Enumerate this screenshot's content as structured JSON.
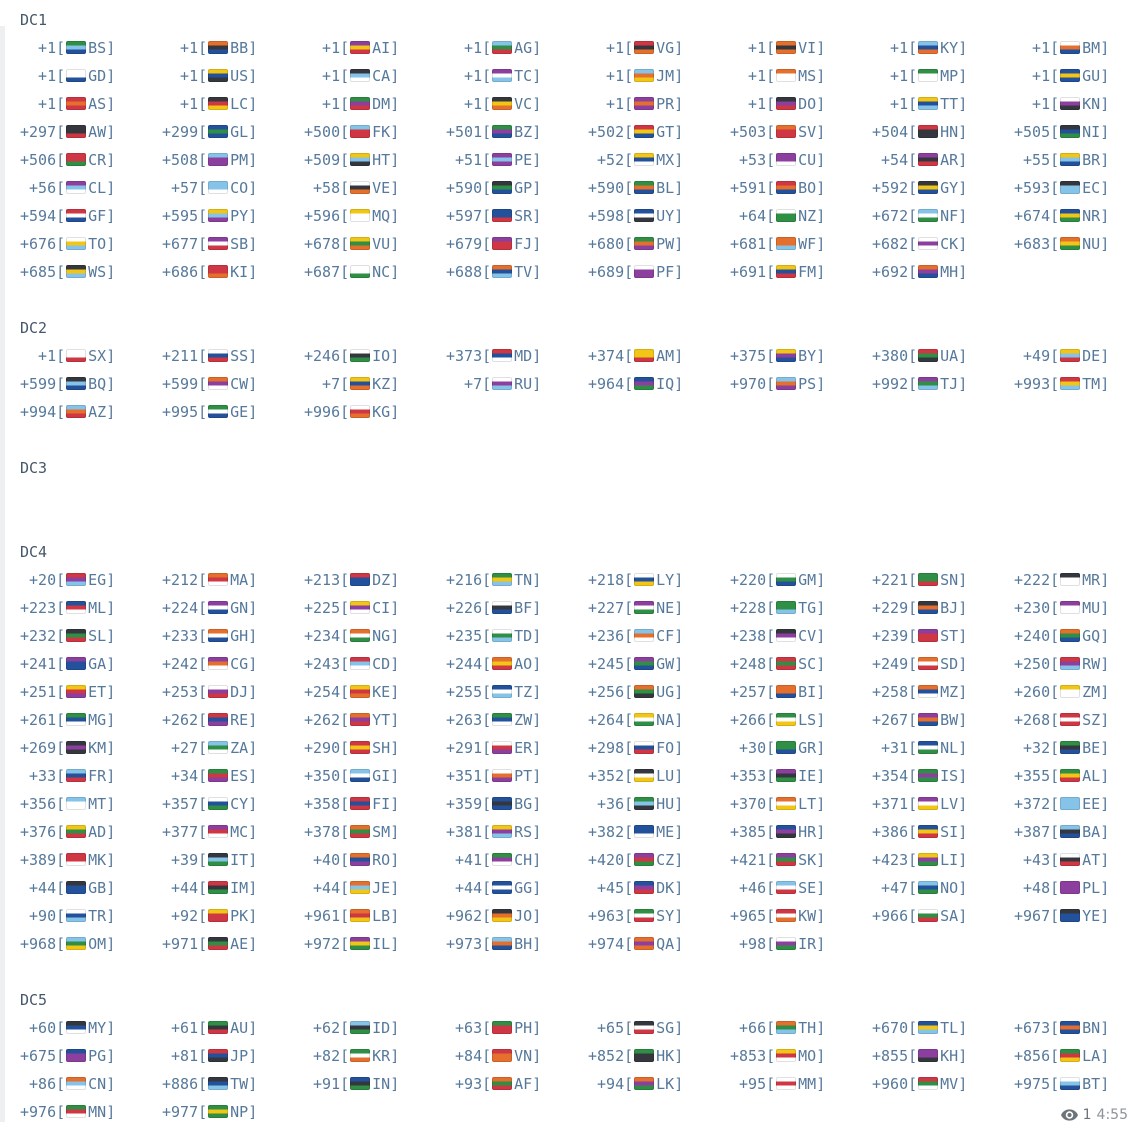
{
  "colors": {
    "entry_text": "#56799b",
    "section_label": "#45586a",
    "meta_text": "#6d747a",
    "time_text": "#8d9398",
    "background": "#ffffff"
  },
  "message": {
    "entry_format": {
      "open": "[",
      "close": "]"
    },
    "sections": [
      {
        "label": "DC1",
        "entries": [
          {
            "code": "+1",
            "cc": "BS"
          },
          {
            "code": "+1",
            "cc": "BB"
          },
          {
            "code": "+1",
            "cc": "AI"
          },
          {
            "code": "+1",
            "cc": "AG"
          },
          {
            "code": "+1",
            "cc": "VG"
          },
          {
            "code": "+1",
            "cc": "VI"
          },
          {
            "code": "+1",
            "cc": "KY"
          },
          {
            "code": "+1",
            "cc": "BM"
          },
          {
            "code": "+1",
            "cc": "GD"
          },
          {
            "code": "+1",
            "cc": "US"
          },
          {
            "code": "+1",
            "cc": "CA"
          },
          {
            "code": "+1",
            "cc": "TC"
          },
          {
            "code": "+1",
            "cc": "JM"
          },
          {
            "code": "+1",
            "cc": "MS"
          },
          {
            "code": "+1",
            "cc": "MP"
          },
          {
            "code": "+1",
            "cc": "GU"
          },
          {
            "code": "+1",
            "cc": "AS"
          },
          {
            "code": "+1",
            "cc": "LC"
          },
          {
            "code": "+1",
            "cc": "DM"
          },
          {
            "code": "+1",
            "cc": "VC"
          },
          {
            "code": "+1",
            "cc": "PR"
          },
          {
            "code": "+1",
            "cc": "DO"
          },
          {
            "code": "+1",
            "cc": "TT"
          },
          {
            "code": "+1",
            "cc": "KN"
          },
          {
            "code": "+297",
            "cc": "AW"
          },
          {
            "code": "+299",
            "cc": "GL"
          },
          {
            "code": "+500",
            "cc": "FK"
          },
          {
            "code": "+501",
            "cc": "BZ"
          },
          {
            "code": "+502",
            "cc": "GT"
          },
          {
            "code": "+503",
            "cc": "SV"
          },
          {
            "code": "+504",
            "cc": "HN"
          },
          {
            "code": "+505",
            "cc": "NI"
          },
          {
            "code": "+506",
            "cc": "CR"
          },
          {
            "code": "+508",
            "cc": "PM"
          },
          {
            "code": "+509",
            "cc": "HT"
          },
          {
            "code": "+51",
            "cc": "PE"
          },
          {
            "code": "+52",
            "cc": "MX"
          },
          {
            "code": "+53",
            "cc": "CU"
          },
          {
            "code": "+54",
            "cc": "AR"
          },
          {
            "code": "+55",
            "cc": "BR"
          },
          {
            "code": "+56",
            "cc": "CL"
          },
          {
            "code": "+57",
            "cc": "CO"
          },
          {
            "code": "+58",
            "cc": "VE"
          },
          {
            "code": "+590",
            "cc": "GP"
          },
          {
            "code": "+590",
            "cc": "BL"
          },
          {
            "code": "+591",
            "cc": "BO"
          },
          {
            "code": "+592",
            "cc": "GY"
          },
          {
            "code": "+593",
            "cc": "EC"
          },
          {
            "code": "+594",
            "cc": "GF"
          },
          {
            "code": "+595",
            "cc": "PY"
          },
          {
            "code": "+596",
            "cc": "MQ"
          },
          {
            "code": "+597",
            "cc": "SR"
          },
          {
            "code": "+598",
            "cc": "UY"
          },
          {
            "code": "+64",
            "cc": "NZ"
          },
          {
            "code": "+672",
            "cc": "NF"
          },
          {
            "code": "+674",
            "cc": "NR"
          },
          {
            "code": "+676",
            "cc": "TO"
          },
          {
            "code": "+677",
            "cc": "SB"
          },
          {
            "code": "+678",
            "cc": "VU"
          },
          {
            "code": "+679",
            "cc": "FJ"
          },
          {
            "code": "+680",
            "cc": "PW"
          },
          {
            "code": "+681",
            "cc": "WF"
          },
          {
            "code": "+682",
            "cc": "CK"
          },
          {
            "code": "+683",
            "cc": "NU"
          },
          {
            "code": "+685",
            "cc": "WS"
          },
          {
            "code": "+686",
            "cc": "KI"
          },
          {
            "code": "+687",
            "cc": "NC"
          },
          {
            "code": "+688",
            "cc": "TV"
          },
          {
            "code": "+689",
            "cc": "PF"
          },
          {
            "code": "+691",
            "cc": "FM"
          },
          {
            "code": "+692",
            "cc": "MH"
          }
        ]
      },
      {
        "label": "DC2",
        "entries": [
          {
            "code": "+1",
            "cc": "SX"
          },
          {
            "code": "+211",
            "cc": "SS"
          },
          {
            "code": "+246",
            "cc": "IO"
          },
          {
            "code": "+373",
            "cc": "MD"
          },
          {
            "code": "+374",
            "cc": "AM"
          },
          {
            "code": "+375",
            "cc": "BY"
          },
          {
            "code": "+380",
            "cc": "UA"
          },
          {
            "code": "+49",
            "cc": "DE"
          },
          {
            "code": "+599",
            "cc": "BQ"
          },
          {
            "code": "+599",
            "cc": "CW"
          },
          {
            "code": "+7",
            "cc": "KZ"
          },
          {
            "code": "+7",
            "cc": "RU"
          },
          {
            "code": "+964",
            "cc": "IQ"
          },
          {
            "code": "+970",
            "cc": "PS"
          },
          {
            "code": "+992",
            "cc": "TJ"
          },
          {
            "code": "+993",
            "cc": "TM"
          },
          {
            "code": "+994",
            "cc": "AZ"
          },
          {
            "code": "+995",
            "cc": "GE"
          },
          {
            "code": "+996",
            "cc": "KG"
          }
        ]
      },
      {
        "label": "DC3",
        "entries": []
      },
      {
        "label": "DC4",
        "entries": [
          {
            "code": "+20",
            "cc": "EG"
          },
          {
            "code": "+212",
            "cc": "MA"
          },
          {
            "code": "+213",
            "cc": "DZ"
          },
          {
            "code": "+216",
            "cc": "TN"
          },
          {
            "code": "+218",
            "cc": "LY"
          },
          {
            "code": "+220",
            "cc": "GM"
          },
          {
            "code": "+221",
            "cc": "SN"
          },
          {
            "code": "+222",
            "cc": "MR"
          },
          {
            "code": "+223",
            "cc": "ML"
          },
          {
            "code": "+224",
            "cc": "GN"
          },
          {
            "code": "+225",
            "cc": "CI"
          },
          {
            "code": "+226",
            "cc": "BF"
          },
          {
            "code": "+227",
            "cc": "NE"
          },
          {
            "code": "+228",
            "cc": "TG"
          },
          {
            "code": "+229",
            "cc": "BJ"
          },
          {
            "code": "+230",
            "cc": "MU"
          },
          {
            "code": "+232",
            "cc": "SL"
          },
          {
            "code": "+233",
            "cc": "GH"
          },
          {
            "code": "+234",
            "cc": "NG"
          },
          {
            "code": "+235",
            "cc": "TD"
          },
          {
            "code": "+236",
            "cc": "CF"
          },
          {
            "code": "+238",
            "cc": "CV"
          },
          {
            "code": "+239",
            "cc": "ST"
          },
          {
            "code": "+240",
            "cc": "GQ"
          },
          {
            "code": "+241",
            "cc": "GA"
          },
          {
            "code": "+242",
            "cc": "CG"
          },
          {
            "code": "+243",
            "cc": "CD"
          },
          {
            "code": "+244",
            "cc": "AO"
          },
          {
            "code": "+245",
            "cc": "GW"
          },
          {
            "code": "+248",
            "cc": "SC"
          },
          {
            "code": "+249",
            "cc": "SD"
          },
          {
            "code": "+250",
            "cc": "RW"
          },
          {
            "code": "+251",
            "cc": "ET"
          },
          {
            "code": "+253",
            "cc": "DJ"
          },
          {
            "code": "+254",
            "cc": "KE"
          },
          {
            "code": "+255",
            "cc": "TZ"
          },
          {
            "code": "+256",
            "cc": "UG"
          },
          {
            "code": "+257",
            "cc": "BI"
          },
          {
            "code": "+258",
            "cc": "MZ"
          },
          {
            "code": "+260",
            "cc": "ZM"
          },
          {
            "code": "+261",
            "cc": "MG"
          },
          {
            "code": "+262",
            "cc": "RE"
          },
          {
            "code": "+262",
            "cc": "YT"
          },
          {
            "code": "+263",
            "cc": "ZW"
          },
          {
            "code": "+264",
            "cc": "NA"
          },
          {
            "code": "+266",
            "cc": "LS"
          },
          {
            "code": "+267",
            "cc": "BW"
          },
          {
            "code": "+268",
            "cc": "SZ"
          },
          {
            "code": "+269",
            "cc": "KM"
          },
          {
            "code": "+27",
            "cc": "ZA"
          },
          {
            "code": "+290",
            "cc": "SH"
          },
          {
            "code": "+291",
            "cc": "ER"
          },
          {
            "code": "+298",
            "cc": "FO"
          },
          {
            "code": "+30",
            "cc": "GR"
          },
          {
            "code": "+31",
            "cc": "NL"
          },
          {
            "code": "+32",
            "cc": "BE"
          },
          {
            "code": "+33",
            "cc": "FR"
          },
          {
            "code": "+34",
            "cc": "ES"
          },
          {
            "code": "+350",
            "cc": "GI"
          },
          {
            "code": "+351",
            "cc": "PT"
          },
          {
            "code": "+352",
            "cc": "LU"
          },
          {
            "code": "+353",
            "cc": "IE"
          },
          {
            "code": "+354",
            "cc": "IS"
          },
          {
            "code": "+355",
            "cc": "AL"
          },
          {
            "code": "+356",
            "cc": "MT"
          },
          {
            "code": "+357",
            "cc": "CY"
          },
          {
            "code": "+358",
            "cc": "FI"
          },
          {
            "code": "+359",
            "cc": "BG"
          },
          {
            "code": "+36",
            "cc": "HU"
          },
          {
            "code": "+370",
            "cc": "LT"
          },
          {
            "code": "+371",
            "cc": "LV"
          },
          {
            "code": "+372",
            "cc": "EE"
          },
          {
            "code": "+376",
            "cc": "AD"
          },
          {
            "code": "+377",
            "cc": "MC"
          },
          {
            "code": "+378",
            "cc": "SM"
          },
          {
            "code": "+381",
            "cc": "RS"
          },
          {
            "code": "+382",
            "cc": "ME"
          },
          {
            "code": "+385",
            "cc": "HR"
          },
          {
            "code": "+386",
            "cc": "SI"
          },
          {
            "code": "+387",
            "cc": "BA"
          },
          {
            "code": "+389",
            "cc": "MK"
          },
          {
            "code": "+39",
            "cc": "IT"
          },
          {
            "code": "+40",
            "cc": "RO"
          },
          {
            "code": "+41",
            "cc": "CH"
          },
          {
            "code": "+420",
            "cc": "CZ"
          },
          {
            "code": "+421",
            "cc": "SK"
          },
          {
            "code": "+423",
            "cc": "LI"
          },
          {
            "code": "+43",
            "cc": "AT"
          },
          {
            "code": "+44",
            "cc": "GB"
          },
          {
            "code": "+44",
            "cc": "IM"
          },
          {
            "code": "+44",
            "cc": "JE"
          },
          {
            "code": "+44",
            "cc": "GG"
          },
          {
            "code": "+45",
            "cc": "DK"
          },
          {
            "code": "+46",
            "cc": "SE"
          },
          {
            "code": "+47",
            "cc": "NO"
          },
          {
            "code": "+48",
            "cc": "PL"
          },
          {
            "code": "+90",
            "cc": "TR"
          },
          {
            "code": "+92",
            "cc": "PK"
          },
          {
            "code": "+961",
            "cc": "LB"
          },
          {
            "code": "+962",
            "cc": "JO"
          },
          {
            "code": "+963",
            "cc": "SY"
          },
          {
            "code": "+965",
            "cc": "KW"
          },
          {
            "code": "+966",
            "cc": "SA"
          },
          {
            "code": "+967",
            "cc": "YE"
          },
          {
            "code": "+968",
            "cc": "OM"
          },
          {
            "code": "+971",
            "cc": "AE"
          },
          {
            "code": "+972",
            "cc": "IL"
          },
          {
            "code": "+973",
            "cc": "BH"
          },
          {
            "code": "+974",
            "cc": "QA"
          },
          {
            "code": "+98",
            "cc": "IR"
          }
        ]
      },
      {
        "label": "DC5",
        "entries": [
          {
            "code": "+60",
            "cc": "MY"
          },
          {
            "code": "+61",
            "cc": "AU"
          },
          {
            "code": "+62",
            "cc": "ID"
          },
          {
            "code": "+63",
            "cc": "PH"
          },
          {
            "code": "+65",
            "cc": "SG"
          },
          {
            "code": "+66",
            "cc": "TH"
          },
          {
            "code": "+670",
            "cc": "TL"
          },
          {
            "code": "+673",
            "cc": "BN"
          },
          {
            "code": "+675",
            "cc": "PG"
          },
          {
            "code": "+81",
            "cc": "JP"
          },
          {
            "code": "+82",
            "cc": "KR"
          },
          {
            "code": "+84",
            "cc": "VN"
          },
          {
            "code": "+852",
            "cc": "HK"
          },
          {
            "code": "+853",
            "cc": "MO"
          },
          {
            "code": "+855",
            "cc": "KH"
          },
          {
            "code": "+856",
            "cc": "LA"
          },
          {
            "code": "+86",
            "cc": "CN"
          },
          {
            "code": "+886",
            "cc": "TW"
          },
          {
            "code": "+91",
            "cc": "IN"
          },
          {
            "code": "+93",
            "cc": "AF"
          },
          {
            "code": "+94",
            "cc": "LK"
          },
          {
            "code": "+95",
            "cc": "MM"
          },
          {
            "code": "+960",
            "cc": "MV"
          },
          {
            "code": "+975",
            "cc": "BT"
          },
          {
            "code": "+976",
            "cc": "MN"
          },
          {
            "code": "+977",
            "cc": "NP"
          }
        ]
      }
    ],
    "footer": {
      "views_icon": "eye-icon",
      "views": "1",
      "time": "4:55"
    }
  }
}
